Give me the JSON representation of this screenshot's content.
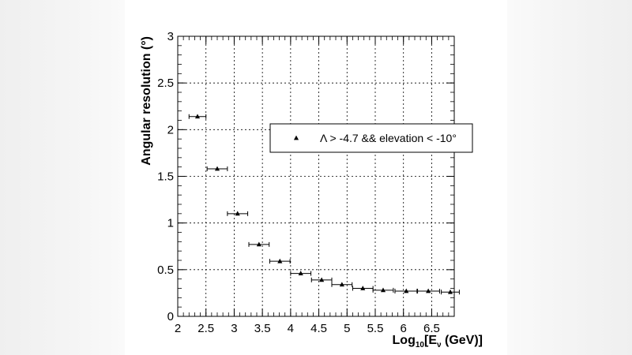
{
  "chart_data": {
    "type": "scatter",
    "xlabel": {
      "prefix": "Log",
      "sub1": "10",
      "mid": "[E",
      "sub2": "ν",
      "suffix": " (GeV)]"
    },
    "ylabel": "Angular resolution (°)",
    "xlim": [
      2,
      6.9
    ],
    "ylim": [
      0,
      3
    ],
    "x_ticks": [
      2,
      2.5,
      3,
      3.5,
      4,
      4.5,
      5,
      5.5,
      6,
      6.5
    ],
    "y_ticks": [
      0,
      0.5,
      1,
      1.5,
      2,
      2.5,
      3
    ],
    "grid": true,
    "legend_position": "right, upper-middle",
    "series": [
      {
        "name": "Λ > -4.7 && elevation < -10°",
        "marker": "triangle",
        "color": "#000000",
        "points": [
          {
            "x": 2.35,
            "y": 2.14,
            "xerr": 0.15
          },
          {
            "x": 2.7,
            "y": 1.58,
            "xerr": 0.18
          },
          {
            "x": 3.06,
            "y": 1.1,
            "xerr": 0.18
          },
          {
            "x": 3.44,
            "y": 0.77,
            "xerr": 0.18
          },
          {
            "x": 3.81,
            "y": 0.59,
            "xerr": 0.18
          },
          {
            "x": 4.18,
            "y": 0.46,
            "xerr": 0.18
          },
          {
            "x": 4.55,
            "y": 0.39,
            "xerr": 0.18
          },
          {
            "x": 4.91,
            "y": 0.34,
            "xerr": 0.18
          },
          {
            "x": 5.28,
            "y": 0.3,
            "xerr": 0.18
          },
          {
            "x": 5.64,
            "y": 0.28,
            "xerr": 0.18
          },
          {
            "x": 6.05,
            "y": 0.27,
            "xerr": 0.2
          },
          {
            "x": 6.44,
            "y": 0.27,
            "xerr": 0.2
          },
          {
            "x": 6.83,
            "y": 0.26,
            "xerr": 0.16
          }
        ]
      }
    ]
  }
}
